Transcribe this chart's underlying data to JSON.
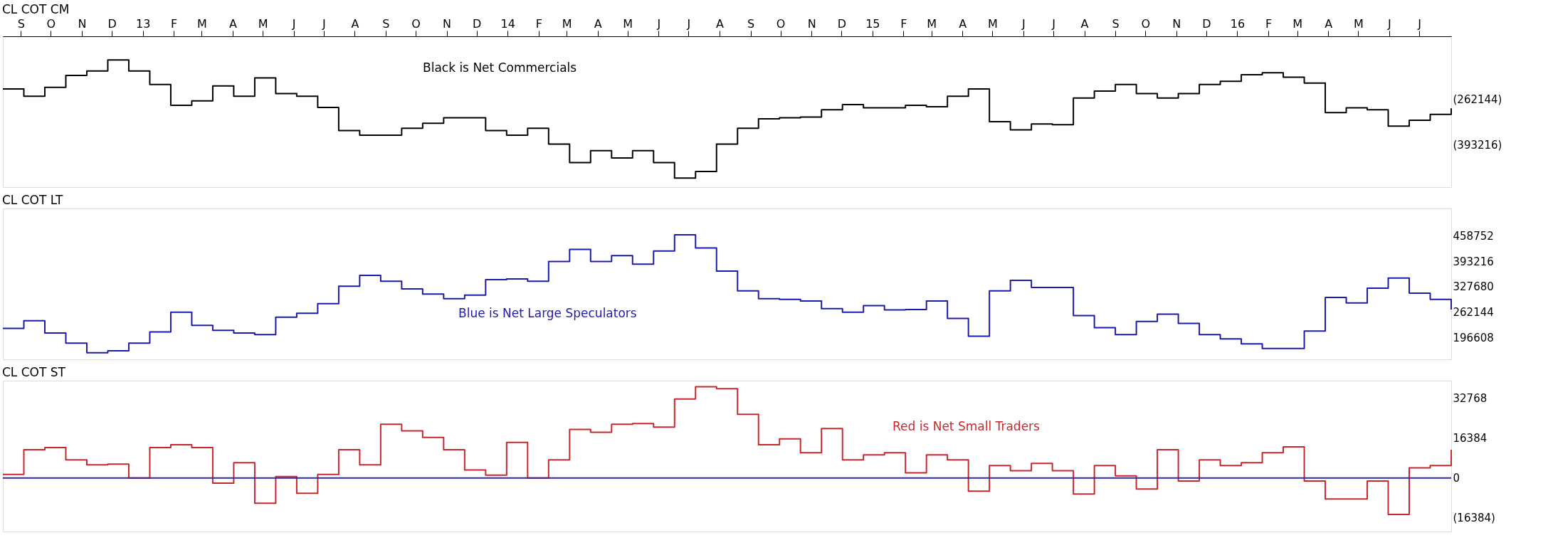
{
  "chart_data": [
    {
      "type": "step",
      "title": "CL COT CM",
      "annotations": [
        "Black is Net Commercials"
      ],
      "x": [
        "2012-08-14",
        "2012-09-04",
        "2012-09-25",
        "2012-10-16",
        "2012-11-06",
        "2012-11-27",
        "2012-12-18",
        "2013-01-08",
        "2013-01-29",
        "2013-02-19",
        "2013-03-12",
        "2013-04-02",
        "2013-04-23",
        "2013-05-14",
        "2013-06-04",
        "2013-06-25",
        "2013-07-16",
        "2013-08-06",
        "2013-08-27",
        "2013-09-17",
        "2013-10-08",
        "2013-10-29",
        "2013-11-19",
        "2013-12-10",
        "2013-12-31",
        "2014-01-21",
        "2014-02-11",
        "2014-03-04",
        "2014-03-25",
        "2014-04-15",
        "2014-05-06",
        "2014-05-27",
        "2014-06-17",
        "2014-07-08",
        "2014-07-29",
        "2014-08-19",
        "2014-09-09",
        "2014-09-30",
        "2014-10-21",
        "2014-11-11",
        "2014-12-02",
        "2014-12-23",
        "2015-01-13",
        "2015-02-03",
        "2015-02-24",
        "2015-03-17",
        "2015-04-07",
        "2015-04-28",
        "2015-05-19",
        "2015-06-09",
        "2015-06-30",
        "2015-07-21",
        "2015-08-11",
        "2015-09-01",
        "2015-09-22",
        "2015-10-13",
        "2015-11-03",
        "2015-11-24",
        "2015-12-15",
        "2016-01-05",
        "2016-01-26",
        "2016-02-16",
        "2016-03-08",
        "2016-03-29",
        "2016-04-19",
        "2016-05-10",
        "2016-05-31",
        "2016-06-21",
        "2016-07-12",
        "2016-08-02"
      ],
      "series": [
        {
          "color": "#000000",
          "values": [
            -232000,
            -253000,
            -227000,
            -193000,
            -180000,
            -148000,
            -180000,
            -219000,
            -279000,
            -266000,
            -223000,
            -253000,
            -200000,
            -245000,
            -253000,
            -285000,
            -352000,
            -365000,
            -365000,
            -345000,
            -331000,
            -315000,
            -315000,
            -352000,
            -365000,
            -345000,
            -391000,
            -444000,
            -410000,
            -431000,
            -410000,
            -444000,
            -489000,
            -470000,
            -391000,
            -345000,
            -318000,
            -315000,
            -313000,
            -292000,
            -277000,
            -286000,
            -286000,
            -279000,
            -283000,
            -253000,
            -232000,
            -326000,
            -350000,
            -333000,
            -335000,
            -258000,
            -238000,
            -219000,
            -245000,
            -258000,
            -245000,
            -219000,
            -210000,
            -191000,
            -185000,
            -198000,
            -215000,
            -300000,
            -286000,
            -292000,
            -339000,
            -322000,
            -305000,
            -288000
          ]
        }
      ],
      "xlim": [
        "2012-08-14",
        "2016-08-02"
      ],
      "xticks": [
        {
          "value": "2012-09-01",
          "label": "S"
        },
        {
          "value": "2012-10-01",
          "label": "O"
        },
        {
          "value": "2012-11-01",
          "label": "N"
        },
        {
          "value": "2012-12-01",
          "label": "D"
        },
        {
          "value": "2013-01-01",
          "label": "13"
        },
        {
          "value": "2013-02-01",
          "label": "F"
        },
        {
          "value": "2013-03-01",
          "label": "M"
        },
        {
          "value": "2013-04-01",
          "label": "A"
        },
        {
          "value": "2013-05-01",
          "label": "M"
        },
        {
          "value": "2013-06-01",
          "label": "J"
        },
        {
          "value": "2013-07-01",
          "label": "J"
        },
        {
          "value": "2013-08-01",
          "label": "A"
        },
        {
          "value": "2013-09-01",
          "label": "S"
        },
        {
          "value": "2013-10-01",
          "label": "O"
        },
        {
          "value": "2013-11-01",
          "label": "N"
        },
        {
          "value": "2013-12-01",
          "label": "D"
        },
        {
          "value": "2014-01-01",
          "label": "14"
        },
        {
          "value": "2014-02-01",
          "label": "F"
        },
        {
          "value": "2014-03-01",
          "label": "M"
        },
        {
          "value": "2014-04-01",
          "label": "A"
        },
        {
          "value": "2014-05-01",
          "label": "M"
        },
        {
          "value": "2014-06-01",
          "label": "J"
        },
        {
          "value": "2014-07-01",
          "label": "J"
        },
        {
          "value": "2014-08-01",
          "label": "A"
        },
        {
          "value": "2014-09-01",
          "label": "S"
        },
        {
          "value": "2014-10-01",
          "label": "O"
        },
        {
          "value": "2014-11-01",
          "label": "N"
        },
        {
          "value": "2014-12-01",
          "label": "D"
        },
        {
          "value": "2015-01-01",
          "label": "15"
        },
        {
          "value": "2015-02-01",
          "label": "F"
        },
        {
          "value": "2015-03-01",
          "label": "M"
        },
        {
          "value": "2015-04-01",
          "label": "A"
        },
        {
          "value": "2015-05-01",
          "label": "M"
        },
        {
          "value": "2015-06-01",
          "label": "J"
        },
        {
          "value": "2015-07-01",
          "label": "J"
        },
        {
          "value": "2015-08-01",
          "label": "A"
        },
        {
          "value": "2015-09-01",
          "label": "S"
        },
        {
          "value": "2015-10-01",
          "label": "O"
        },
        {
          "value": "2015-11-01",
          "label": "N"
        },
        {
          "value": "2015-12-01",
          "label": "D"
        },
        {
          "value": "2016-01-01",
          "label": "16"
        },
        {
          "value": "2016-02-01",
          "label": "F"
        },
        {
          "value": "2016-03-01",
          "label": "M"
        },
        {
          "value": "2016-04-01",
          "label": "A"
        },
        {
          "value": "2016-05-01",
          "label": "M"
        },
        {
          "value": "2016-06-01",
          "label": "J"
        },
        {
          "value": "2016-07-01",
          "label": "J"
        }
      ],
      "ylim": [
        -515000,
        -80000
      ],
      "yticks": [
        {
          "value": -262144,
          "label": "(262144)"
        },
        {
          "value": -393216,
          "label": "(393216)"
        }
      ]
    },
    {
      "type": "step",
      "title": "CL COT LT",
      "annotations": [
        "Blue is Net Large Speculators"
      ],
      "x": [
        "2012-08-14",
        "2012-09-04",
        "2012-09-25",
        "2012-10-16",
        "2012-11-06",
        "2012-11-27",
        "2012-12-18",
        "2013-01-08",
        "2013-01-29",
        "2013-02-19",
        "2013-03-12",
        "2013-04-02",
        "2013-04-23",
        "2013-05-14",
        "2013-06-04",
        "2013-06-25",
        "2013-07-16",
        "2013-08-06",
        "2013-08-27",
        "2013-09-17",
        "2013-10-08",
        "2013-10-29",
        "2013-11-19",
        "2013-12-10",
        "2013-12-31",
        "2014-01-21",
        "2014-02-11",
        "2014-03-04",
        "2014-03-25",
        "2014-04-15",
        "2014-05-06",
        "2014-05-27",
        "2014-06-17",
        "2014-07-08",
        "2014-07-29",
        "2014-08-19",
        "2014-09-09",
        "2014-09-30",
        "2014-10-21",
        "2014-11-11",
        "2014-12-02",
        "2014-12-23",
        "2015-01-13",
        "2015-02-03",
        "2015-02-24",
        "2015-03-17",
        "2015-04-07",
        "2015-04-28",
        "2015-05-19",
        "2015-06-09",
        "2015-06-30",
        "2015-07-21",
        "2015-08-11",
        "2015-09-01",
        "2015-09-22",
        "2015-10-13",
        "2015-11-03",
        "2015-11-24",
        "2015-12-15",
        "2016-01-05",
        "2016-01-26",
        "2016-02-16",
        "2016-03-08",
        "2016-03-29",
        "2016-04-19",
        "2016-05-10",
        "2016-05-31",
        "2016-06-21",
        "2016-07-12",
        "2016-08-02"
      ],
      "series": [
        {
          "color": "#1c1ca8",
          "values": [
            220000,
            240000,
            208000,
            182000,
            157000,
            162000,
            182000,
            211000,
            262000,
            228000,
            215000,
            208000,
            204000,
            249000,
            259000,
            284000,
            329000,
            357000,
            342000,
            322000,
            309000,
            297000,
            306000,
            346000,
            348000,
            342000,
            393000,
            424000,
            393000,
            408000,
            386000,
            420000,
            462000,
            428000,
            368000,
            317000,
            297000,
            295000,
            291000,
            271000,
            262000,
            279000,
            268000,
            269000,
            291000,
            246000,
            200000,
            317000,
            344000,
            326000,
            326000,
            253000,
            222000,
            204000,
            238000,
            257000,
            233000,
            204000,
            193000,
            180000,
            168000,
            168000,
            213000,
            300000,
            286000,
            324000,
            350000,
            311000,
            295000,
            269000
          ]
        }
      ],
      "xlim": [
        "2012-08-14",
        "2016-08-02"
      ],
      "ylim": [
        140000,
        530000
      ],
      "yticks": [
        458752,
        393216,
        327680,
        262144,
        196608
      ],
      "tick_labels": "y"
    },
    {
      "type": "step",
      "title": "CL COT ST",
      "annotations": [
        "Red is Net Small Traders"
      ],
      "x": [
        "2012-08-14",
        "2012-09-04",
        "2012-09-25",
        "2012-10-16",
        "2012-11-06",
        "2012-11-27",
        "2012-12-18",
        "2013-01-08",
        "2013-01-29",
        "2013-02-19",
        "2013-03-12",
        "2013-04-02",
        "2013-04-23",
        "2013-05-14",
        "2013-06-04",
        "2013-06-25",
        "2013-07-16",
        "2013-08-06",
        "2013-08-27",
        "2013-09-17",
        "2013-10-08",
        "2013-10-29",
        "2013-11-19",
        "2013-12-10",
        "2013-12-31",
        "2014-01-21",
        "2014-02-11",
        "2014-03-04",
        "2014-03-25",
        "2014-04-15",
        "2014-05-06",
        "2014-05-27",
        "2014-06-17",
        "2014-07-08",
        "2014-07-29",
        "2014-08-19",
        "2014-09-09",
        "2014-09-30",
        "2014-10-21",
        "2014-11-11",
        "2014-12-02",
        "2014-12-23",
        "2015-01-13",
        "2015-02-03",
        "2015-02-24",
        "2015-03-17",
        "2015-04-07",
        "2015-04-28",
        "2015-05-19",
        "2015-06-09",
        "2015-06-30",
        "2015-07-21",
        "2015-08-11",
        "2015-09-01",
        "2015-09-22",
        "2015-10-13",
        "2015-11-03",
        "2015-11-24",
        "2015-12-15",
        "2016-01-05",
        "2016-01-26",
        "2016-02-16",
        "2016-03-08",
        "2016-03-29",
        "2016-04-19",
        "2016-05-10",
        "2016-05-31",
        "2016-06-21",
        "2016-07-12",
        "2016-08-02"
      ],
      "series": [
        {
          "color": "#c8282d",
          "values": [
            1500,
            11600,
            12500,
            7500,
            5400,
            5700,
            0,
            12500,
            13700,
            12500,
            -2100,
            6300,
            -10400,
            600,
            -6300,
            1500,
            11600,
            5400,
            22100,
            19400,
            16700,
            11600,
            3300,
            1200,
            14600,
            0,
            7500,
            20000,
            18800,
            22100,
            22400,
            20900,
            32500,
            37500,
            36700,
            26200,
            13700,
            16100,
            10400,
            20300,
            7500,
            9500,
            10400,
            2100,
            9500,
            7500,
            -5400,
            5100,
            3000,
            6000,
            3000,
            -6600,
            5100,
            900,
            -4500,
            11600,
            -1200,
            7500,
            5100,
            6300,
            10400,
            12800,
            -1200,
            -8600,
            -8600,
            -1200,
            -15000,
            4200,
            5100,
            11600
          ]
        }
      ],
      "xlim": [
        "2012-08-14",
        "2016-08-02"
      ],
      "ylim": [
        -22000,
        40000
      ],
      "yticks": [
        32768,
        16384,
        0,
        {
          "value": -16384,
          "label": "(16384)"
        }
      ],
      "ref_lines": [
        {
          "axis": "y",
          "value": 0,
          "color": "#2a2ab0"
        }
      ],
      "tick_labels": "y"
    }
  ]
}
